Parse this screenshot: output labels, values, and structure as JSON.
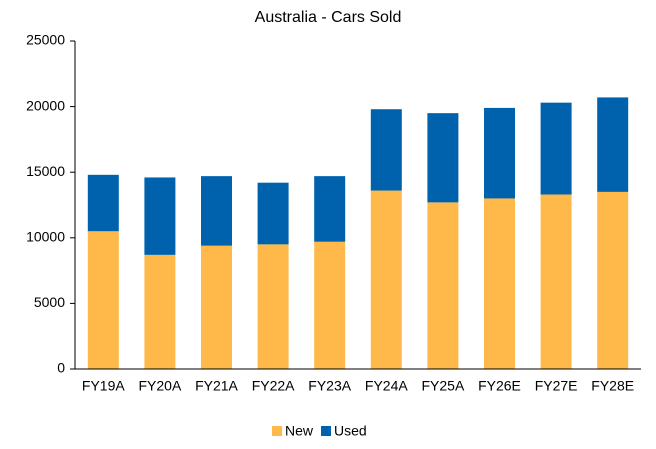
{
  "chart_data": {
    "type": "stacked_bar",
    "title": "Australia - Cars Sold",
    "categories": [
      "FY19A",
      "FY20A",
      "FY21A",
      "FY22A",
      "FY23A",
      "FY24A",
      "FY25A",
      "FY26E",
      "FY27E",
      "FY28E"
    ],
    "series": [
      {
        "name": "New",
        "color": "#ffb94a",
        "values": [
          10500,
          8700,
          9400,
          9500,
          9700,
          13600,
          12700,
          13000,
          13300,
          13500
        ]
      },
      {
        "name": "Used",
        "color": "#0062ad",
        "values": [
          4300,
          5900,
          5300,
          4700,
          5000,
          6200,
          6800,
          6900,
          7000,
          7200
        ]
      }
    ],
    "ylim": [
      0,
      25000
    ],
    "yticks": [
      0,
      5000,
      10000,
      15000,
      20000,
      25000
    ],
    "grid": false,
    "legend": "bottom"
  }
}
